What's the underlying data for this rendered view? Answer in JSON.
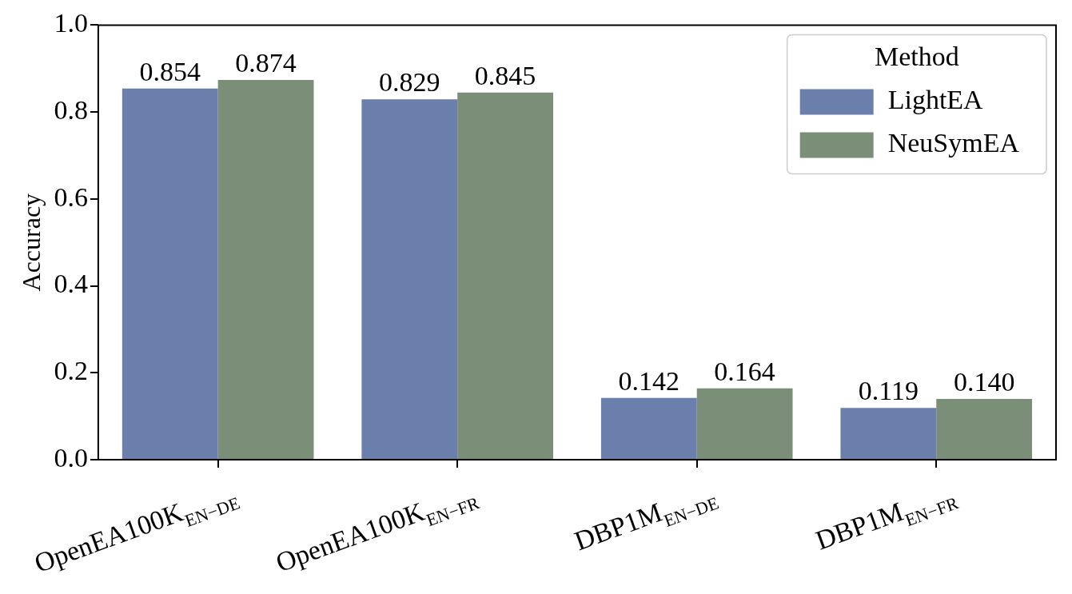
{
  "chart_data": {
    "type": "bar",
    "ylabel": "Accuracy",
    "legend_title": "Method",
    "categories": [
      "OpenEA100K$_{EN−DE}$",
      "OpenEA100K$_{EN−FR}$",
      "DBP1M$_{EN−DE}$",
      "DBP1M$_{EN−FR}$"
    ],
    "series": [
      {
        "name": "LightEA",
        "color": "#6a7fab",
        "values": [
          0.854,
          0.829,
          0.142,
          0.119
        ],
        "value_labels": [
          "0.854",
          "0.829",
          "0.142",
          "0.119"
        ]
      },
      {
        "name": "NeuSymEA",
        "color": "#7b8e78",
        "values": [
          0.874,
          0.845,
          0.164,
          0.14
        ],
        "value_labels": [
          "0.874",
          "0.845",
          "0.164",
          "0.140"
        ]
      }
    ],
    "ylim": [
      0,
      1
    ],
    "yticks": [
      {
        "value": 0,
        "label": "0.0"
      },
      {
        "value": 0.2,
        "label": "0.2"
      },
      {
        "value": 0.4,
        "label": "0.4"
      },
      {
        "value": 0.6,
        "label": "0.6"
      },
      {
        "value": 0.8,
        "label": "0.8"
      },
      {
        "value": 1,
        "label": "1.0"
      }
    ],
    "grid": false,
    "legend": "top right"
  }
}
